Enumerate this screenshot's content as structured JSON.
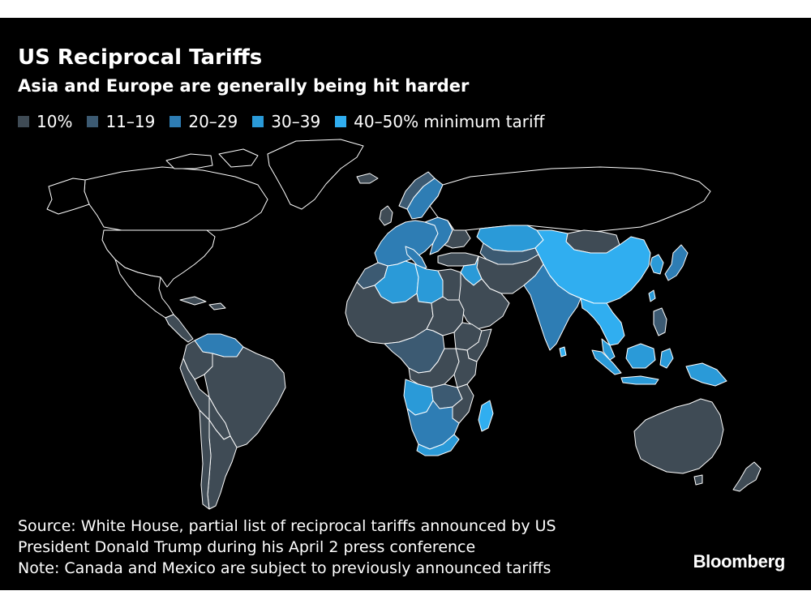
{
  "header": {
    "title": "US Reciprocal Tariffs",
    "subtitle": "Asia and Europe are generally being hit harder"
  },
  "legend": [
    {
      "label": "10%",
      "color": "#3f4b55"
    },
    {
      "label": "11–19",
      "color": "#3c5a72"
    },
    {
      "label": "20–29",
      "color": "#2e7db4"
    },
    {
      "label": "30–39",
      "color": "#2a9ad8"
    },
    {
      "label": "40–50% minimum tariff",
      "color": "#30aef0"
    }
  ],
  "colors": {
    "background": "#000000",
    "no_data": "#000000",
    "outline": "#ffffff"
  },
  "footer": {
    "source_line1": "Source: White House, partial list of reciprocal tariffs announced by US",
    "source_line2": "President Donald Trump during his April 2 press conference",
    "note": "Note: Canada and Mexico are subject to previously announced tariffs",
    "logo": "Bloomberg"
  }
}
